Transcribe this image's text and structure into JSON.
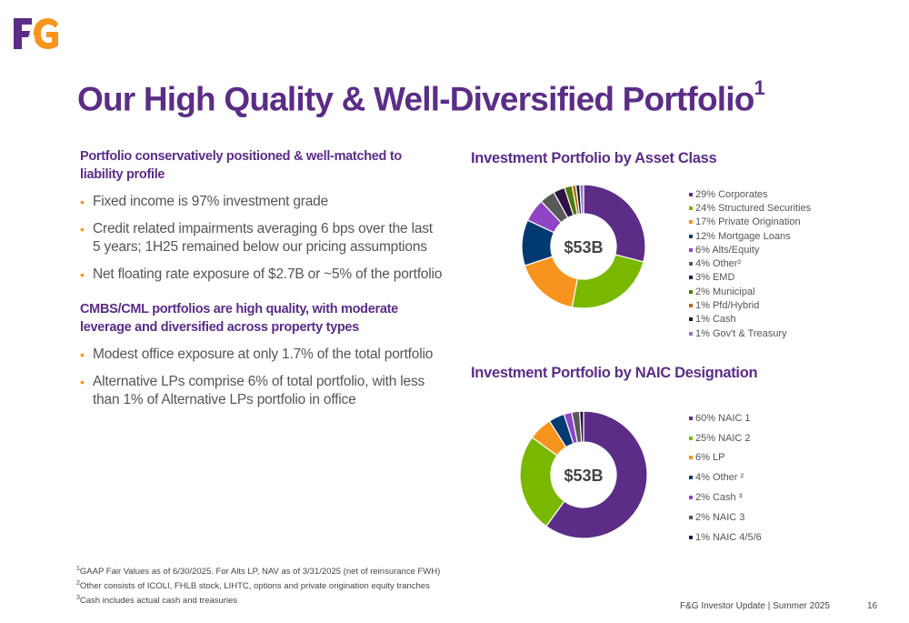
{
  "header": {
    "logo_text": "F&G",
    "title": "Our High Quality & Well-Diversified Portfolio",
    "title_sup": "1"
  },
  "left": {
    "section1": {
      "heading": "Portfolio conservatively positioned & well-matched to liability profile",
      "bullets": [
        "Fixed income is 97% investment grade",
        "Credit related impairments averaging 6 bps over the last 5 years; 1H25 remained below our pricing assumptions",
        "Net floating rate exposure of $2.7B or ~5% of the portfolio"
      ]
    },
    "section2": {
      "heading": "CMBS/CML portfolios are high quality, with moderate leverage and diversified across property types",
      "bullets": [
        "Modest office exposure at only 1.7% of the total portfolio",
        "Alternative LPs comprise 6% of total portfolio, with less than 1% of Alternative LPs portfolio in office"
      ]
    }
  },
  "chart_data": [
    {
      "type": "pie",
      "title": "Investment Portfolio by Asset Class",
      "center_label": "$53B",
      "legend_position": "right",
      "slices": [
        {
          "label": "29% Corporates",
          "value": 29,
          "color": "#5b2d86"
        },
        {
          "label": "24% Structured Securities",
          "value": 24,
          "color": "#7ab800"
        },
        {
          "label": "17% Private Origination",
          "value": 17,
          "color": "#f7941d"
        },
        {
          "label": "12% Mortgage Loans",
          "value": 12,
          "color": "#003a70"
        },
        {
          "label": "6% Alts/Equity",
          "value": 6,
          "color": "#8e44c4"
        },
        {
          "label": "4% Other²",
          "value": 4,
          "color": "#595959"
        },
        {
          "label": "3% EMD",
          "value": 3,
          "color": "#2d1442"
        },
        {
          "label": "2% Municipal",
          "value": 2,
          "color": "#4d7a00"
        },
        {
          "label": "1% Pfd/Hybrid",
          "value": 1,
          "color": "#b86b00"
        },
        {
          "label": "1% Cash",
          "value": 1,
          "color": "#001f3f"
        },
        {
          "label": "1% Gov't & Treasury",
          "value": 1,
          "color": "#a070c8"
        }
      ]
    },
    {
      "type": "pie",
      "title": "Investment Portfolio by NAIC Designation",
      "center_label": "$53B",
      "legend_position": "right",
      "slices": [
        {
          "label": "60% NAIC 1",
          "value": 60,
          "color": "#5b2d86"
        },
        {
          "label": "25% NAIC 2",
          "value": 25,
          "color": "#7ab800"
        },
        {
          "label": "6% LP",
          "value": 6,
          "color": "#f7941d"
        },
        {
          "label": "4% Other ²",
          "value": 4,
          "color": "#003a70"
        },
        {
          "label": "2% Cash ³",
          "value": 2,
          "color": "#8e44c4"
        },
        {
          "label": "2% NAIC 3",
          "value": 2,
          "color": "#595959"
        },
        {
          "label": "1% NAIC 4/5/6",
          "value": 1,
          "color": "#2d1442"
        }
      ]
    }
  ],
  "footnotes": [
    {
      "sup": "1",
      "text": "GAAP Fair Values as of 6/30/2025. For Alts LP, NAV as of 3/31/2025 (net of reinsurance FWH)"
    },
    {
      "sup": "2",
      "text": "Other consists of ICOLI, FHLB stock, LIHTC, options and private origination equity tranches"
    },
    {
      "sup": "3",
      "text": "Cash includes actual cash and treasuries"
    }
  ],
  "footer": {
    "text": "F&G Investor Update | Summer 2025",
    "page": "16"
  }
}
